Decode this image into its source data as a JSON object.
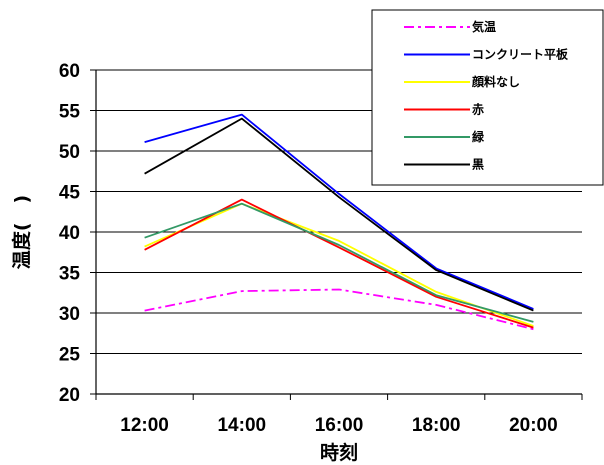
{
  "chart_data": {
    "type": "line",
    "categories": [
      "12:00",
      "14:00",
      "16:00",
      "18:00",
      "20:00"
    ],
    "xlabel": "時刻",
    "ylabel": "温度(　)",
    "ylim": [
      20,
      60
    ],
    "ytick_step": 5,
    "grid": "horizontal",
    "legend_position": "top-right",
    "series": [
      {
        "name": "気温",
        "color": "#ff00ff",
        "dash": "dashdot",
        "values": [
          30.3,
          32.7,
          32.9,
          31.0,
          28.0
        ]
      },
      {
        "name": "コンクリート平板",
        "color": "#0000ff",
        "dash": "solid",
        "values": [
          51.1,
          54.5,
          44.7,
          35.5,
          30.5
        ]
      },
      {
        "name": "顔料なし",
        "color": "#ffff00",
        "dash": "solid",
        "values": [
          38.2,
          43.5,
          38.9,
          32.6,
          28.4
        ]
      },
      {
        "name": "赤",
        "color": "#ff0000",
        "dash": "solid",
        "values": [
          37.8,
          44.0,
          38.1,
          32.0,
          28.2
        ]
      },
      {
        "name": "緑",
        "color": "#339966",
        "dash": "solid",
        "values": [
          39.3,
          43.5,
          38.4,
          32.2,
          28.9
        ]
      },
      {
        "name": "黒",
        "color": "#000000",
        "dash": "solid",
        "values": [
          47.2,
          54.0,
          44.3,
          35.3,
          30.3
        ]
      }
    ]
  }
}
